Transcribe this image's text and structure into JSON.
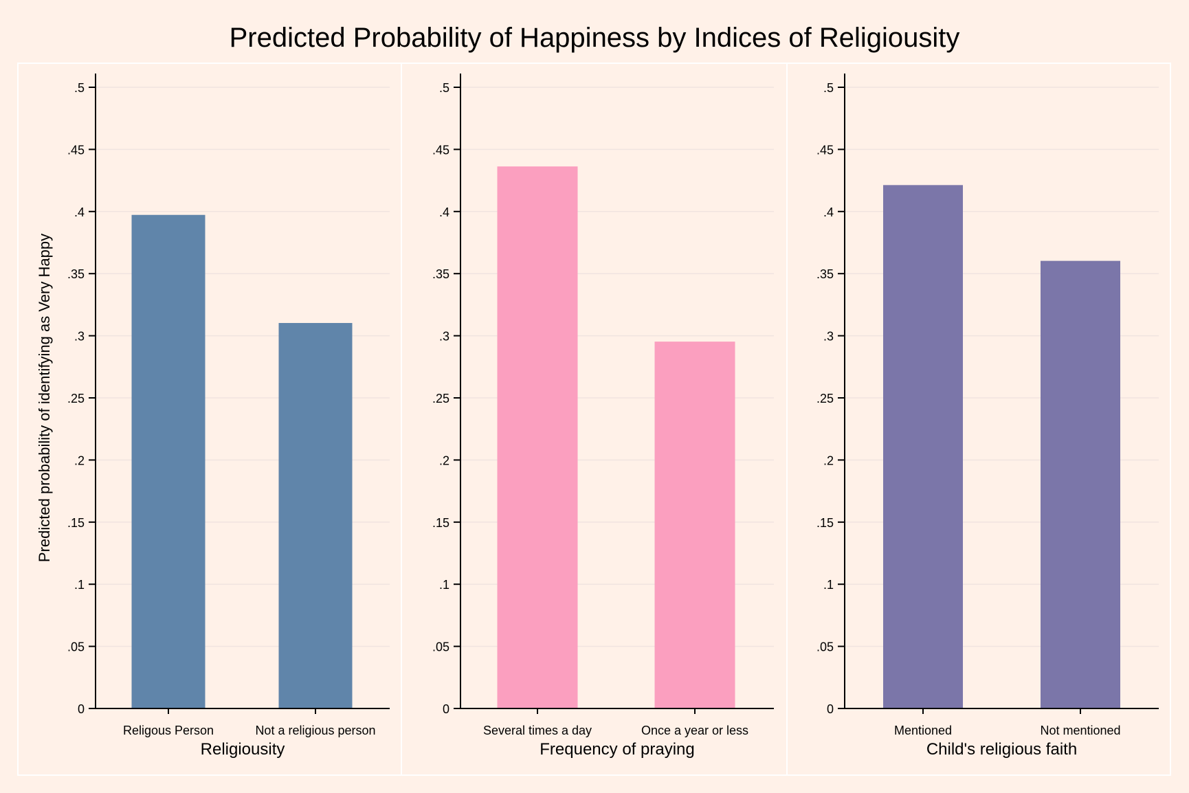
{
  "title": "Predicted Probability of Happiness by Indices of Religiousity",
  "chart_data": [
    {
      "type": "bar",
      "xlabel": "Religiousity",
      "ylabel": "Predicted probability of identifying as Very Happy",
      "categories": [
        "Religous Person",
        "Not a religious person"
      ],
      "values": [
        0.397,
        0.31
      ],
      "color": "#6085aa",
      "ylim": [
        0,
        0.5
      ],
      "yticks": [
        0,
        0.05,
        0.1,
        0.15,
        0.2,
        0.25,
        0.3,
        0.35,
        0.4,
        0.45,
        0.5
      ],
      "ytick_labels": [
        "0",
        ".05",
        ".1",
        ".15",
        ".2",
        ".25",
        ".3",
        ".35",
        ".4",
        ".45",
        ".5"
      ],
      "grid": true
    },
    {
      "type": "bar",
      "xlabel": "Frequency of praying",
      "ylabel": "",
      "categories": [
        "Several times a day",
        "Once a year or less"
      ],
      "values": [
        0.436,
        0.295
      ],
      "color": "#fb9fbf",
      "ylim": [
        0,
        0.5
      ],
      "yticks": [
        0,
        0.05,
        0.1,
        0.15,
        0.2,
        0.25,
        0.3,
        0.35,
        0.4,
        0.45,
        0.5
      ],
      "ytick_labels": [
        "0",
        ".05",
        ".1",
        ".15",
        ".2",
        ".25",
        ".3",
        ".35",
        ".4",
        ".45",
        ".5"
      ],
      "grid": true
    },
    {
      "type": "bar",
      "xlabel": "Child's religious faith",
      "ylabel": "",
      "categories": [
        "Mentioned",
        "Not mentioned"
      ],
      "values": [
        0.421,
        0.36
      ],
      "color": "#7b76a9",
      "ylim": [
        0,
        0.5
      ],
      "yticks": [
        0,
        0.05,
        0.1,
        0.15,
        0.2,
        0.25,
        0.3,
        0.35,
        0.4,
        0.45,
        0.5
      ],
      "ytick_labels": [
        "0",
        ".05",
        ".1",
        ".15",
        ".2",
        ".25",
        ".3",
        ".35",
        ".4",
        ".45",
        ".5"
      ],
      "grid": true
    }
  ]
}
